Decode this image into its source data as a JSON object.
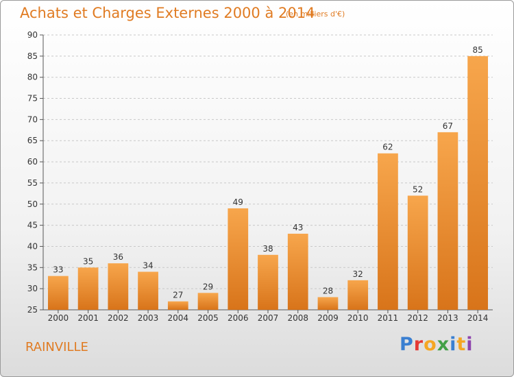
{
  "header": {
    "title": "Achats et Charges Externes 2000 à 2014",
    "unit": "(en milliers d'€)"
  },
  "footer": {
    "commune": "RAINVILLE",
    "brand": "Proxiti",
    "brand_colors": [
      "#3a7fd1",
      "#e53935",
      "#f5a623",
      "#43a047",
      "#3a7fd1",
      "#f5a623",
      "#8e44ad"
    ]
  },
  "colors": {
    "bar_light": "#f7a64c",
    "bar_dark": "#d8741a",
    "accent": "#e07b22",
    "grid": "#c8c8c8"
  },
  "chart_data": {
    "type": "bar",
    "title": "Achats et Charges Externes 2000 à 2014",
    "subtitle": "(en milliers d'€)",
    "categories": [
      "2000",
      "2001",
      "2002",
      "2003",
      "2004",
      "2005",
      "2006",
      "2007",
      "2008",
      "2009",
      "2010",
      "2011",
      "2012",
      "2013",
      "2014"
    ],
    "values": [
      33,
      35,
      36,
      34,
      27,
      29,
      49,
      38,
      43,
      28,
      32,
      62,
      52,
      67,
      85
    ],
    "ylim": [
      25,
      90
    ],
    "yticks": [
      25,
      30,
      35,
      40,
      45,
      50,
      55,
      60,
      65,
      70,
      75,
      80,
      85,
      90
    ],
    "grid": "horizontal-dashed",
    "legend": "none"
  }
}
